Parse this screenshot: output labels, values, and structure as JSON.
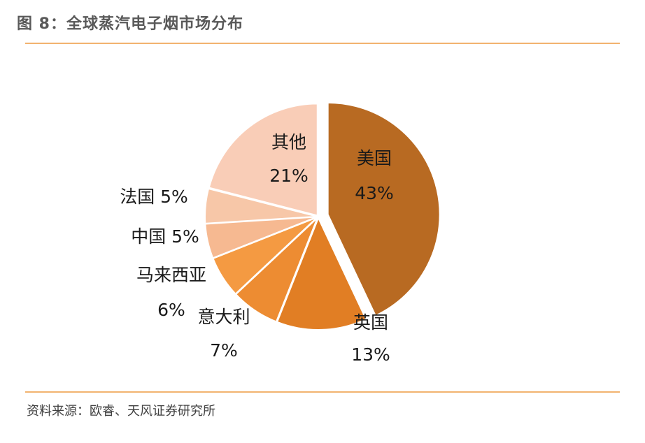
{
  "header": {
    "title": "图 8：全球蒸汽电子烟市场分布"
  },
  "footer": {
    "source": "资料来源：欧睿、天风证券研究所"
  },
  "chart_data": {
    "type": "pie",
    "title": "全球蒸汽电子烟市场分布",
    "unit": "%",
    "slices": [
      {
        "name": "美国",
        "value": 43,
        "label": "43%",
        "color": "#b86a22",
        "exploded": true
      },
      {
        "name": "英国",
        "value": 13,
        "label": "13%",
        "color": "#e17e24",
        "exploded": false
      },
      {
        "name": "意大利",
        "value": 7,
        "label": "7%",
        "color": "#ed8c32",
        "exploded": false
      },
      {
        "name": "马来西亚",
        "value": 6,
        "label": "6%",
        "color": "#f49a42",
        "exploded": false
      },
      {
        "name": "中国",
        "value": 5,
        "label": "5%",
        "color": "#f6b991",
        "exploded": false
      },
      {
        "name": "法国",
        "value": 5,
        "label": "5%",
        "color": "#f7c7a8",
        "exploded": false
      },
      {
        "name": "其他",
        "value": 21,
        "label": "21%",
        "color": "#f9cdb7",
        "exploded": false
      }
    ]
  },
  "colors": {
    "rule": "#f2b36f",
    "title_text": "#595959"
  }
}
